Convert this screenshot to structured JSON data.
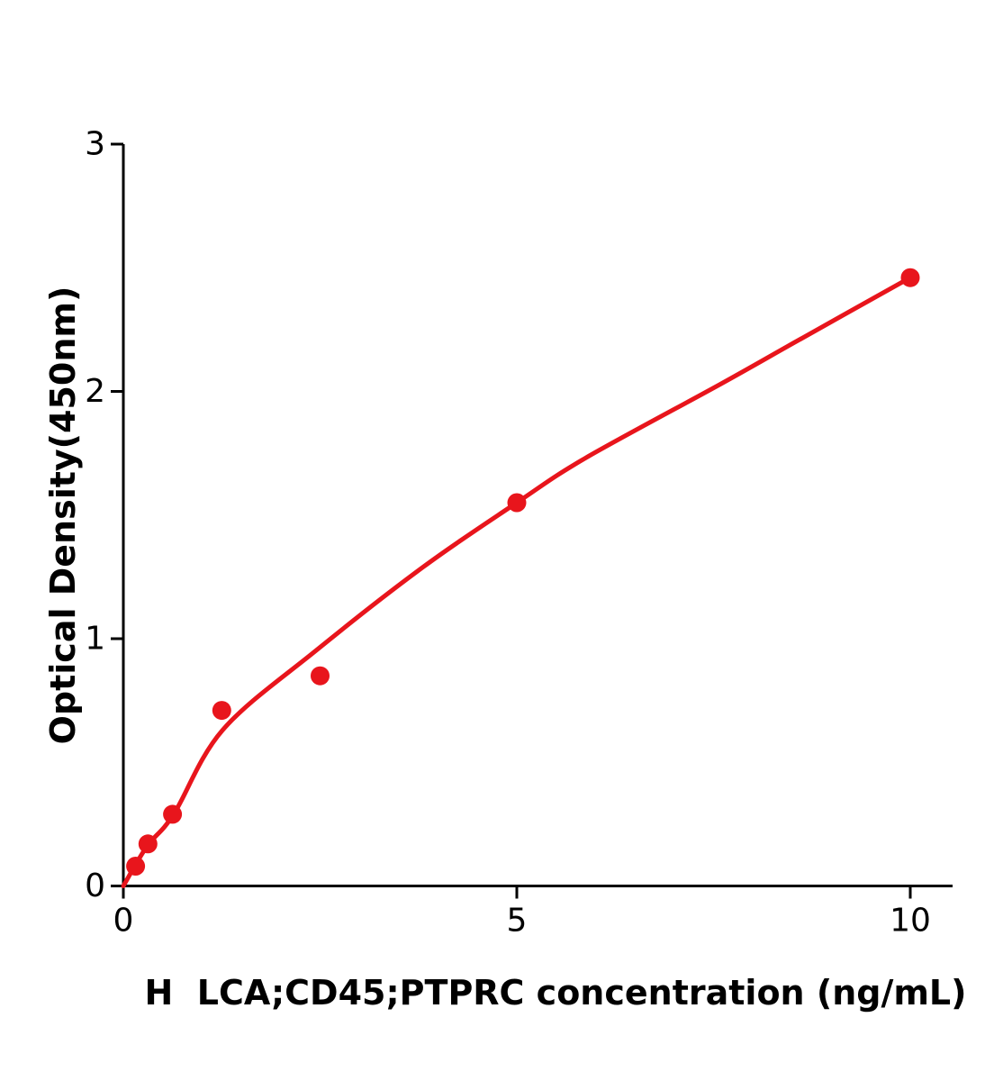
{
  "figure": {
    "background": "#ffffff",
    "axis_color": "#000000",
    "accent_red": "#e8151c"
  },
  "chart_data": {
    "type": "scatter",
    "title": "",
    "xlabel": "H  LCA;CD45;PTPRC concentration (ng/mL)",
    "ylabel": "Optical Density(450nm)",
    "xlim": [
      0,
      10.55
    ],
    "ylim": [
      0,
      3.0
    ],
    "x_ticks": [
      0,
      5,
      10
    ],
    "y_ticks": [
      0,
      1,
      2,
      3
    ],
    "grid": false,
    "legend_position": "none",
    "series": [
      {
        "name": "standard-points",
        "type": "scatter",
        "color": "#e8151c",
        "x": [
          0.156,
          0.3125,
          0.625,
          1.25,
          2.5,
          5,
          10
        ],
        "y": [
          0.08,
          0.17,
          0.29,
          0.71,
          0.85,
          1.55,
          2.46
        ]
      },
      {
        "name": "fitted-curve",
        "type": "line",
        "color": "#e8151c",
        "points": [
          [
            0,
            0
          ],
          [
            0.3,
            0.16
          ],
          [
            0.64,
            0.29
          ],
          [
            1.26,
            0.63
          ],
          [
            2.44,
            0.95
          ],
          [
            3.81,
            1.29
          ],
          [
            5.0,
            1.55
          ],
          [
            5.87,
            1.73
          ],
          [
            7.59,
            2.03
          ],
          [
            8.54,
            2.2
          ],
          [
            10.0,
            2.46
          ]
        ]
      }
    ]
  }
}
